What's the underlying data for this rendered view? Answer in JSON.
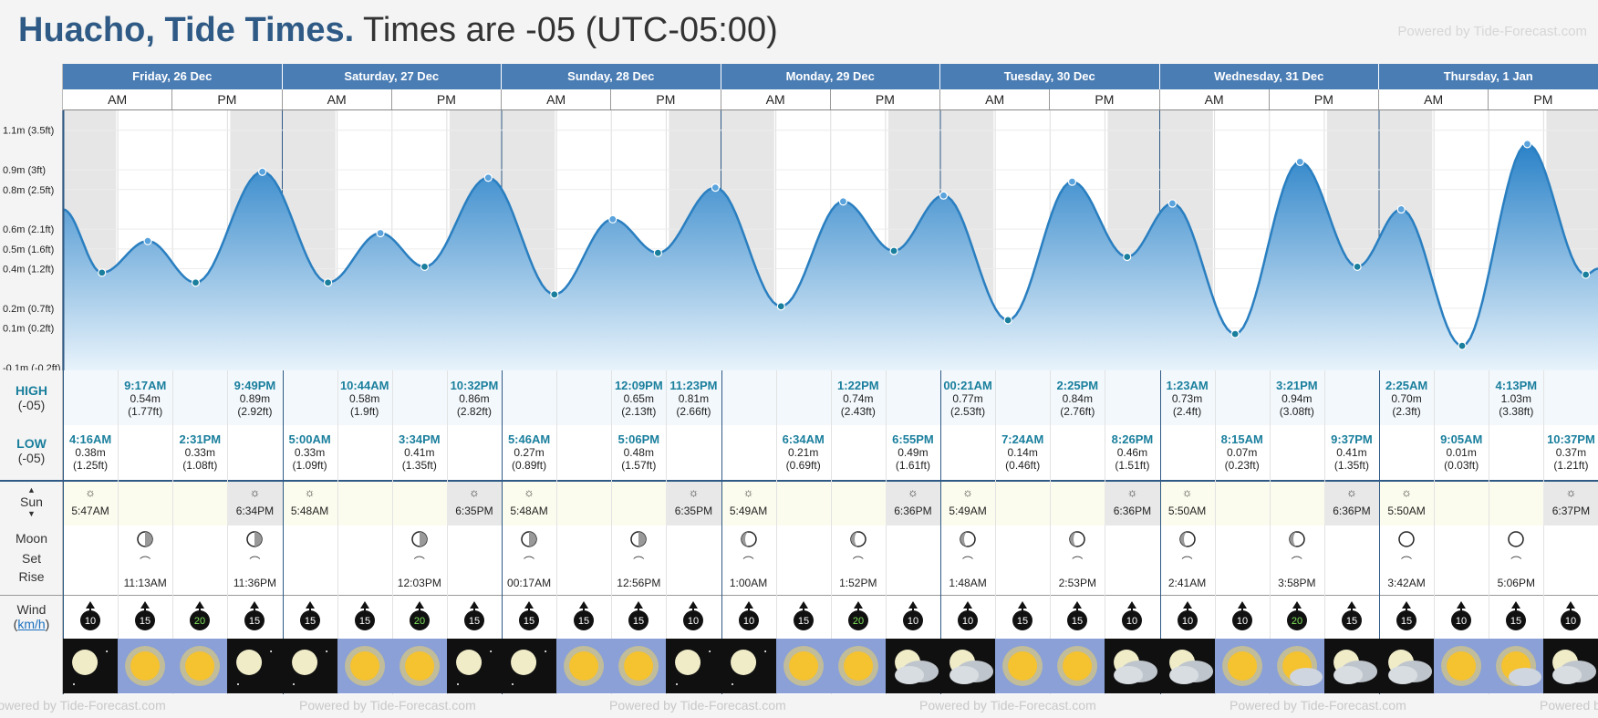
{
  "title": {
    "place": "Huacho, Tide Times.",
    "tz": " Times are -05 (UTC-05:00)"
  },
  "powered": "Powered by Tide-Forecast.com",
  "days": [
    "Friday, 26 Dec",
    "Saturday, 27 Dec",
    "Sunday, 28 Dec",
    "Monday, 29 Dec",
    "Tuesday, 30 Dec",
    "Wednesday, 31 Dec",
    "Thursday, 1 Jan"
  ],
  "am": "AM",
  "pm": "PM",
  "ylabels": [
    "1.1m (3.5ft)",
    "0.9m (3ft)",
    "0.8m (2.5ft)",
    "0.6m (2.1ft)",
    "0.5m (1.6ft)",
    "0.4m (1.2ft)",
    "0.2m (0.7ft)",
    "0.1m (0.2ft)",
    "-0.1m (-0.2ft)"
  ],
  "labels": {
    "high": "HIGH",
    "high_tz": "(-05)",
    "low": "LOW",
    "low_tz": "(-05)",
    "sun": "Sun",
    "moon": "Moon",
    "set": "Set",
    "rise": "Rise",
    "wind": "Wind",
    "unit": "km/h"
  },
  "highs": [
    {
      "slot": 1,
      "time": "9:17AM",
      "m": "0.54m",
      "ft": "(1.77ft)"
    },
    {
      "slot": 3,
      "time": "9:49PM",
      "m": "0.89m",
      "ft": "(2.92ft)"
    },
    {
      "slot": 5,
      "time": "10:44AM",
      "m": "0.58m",
      "ft": "(1.9ft)"
    },
    {
      "slot": 7,
      "time": "10:32PM",
      "m": "0.86m",
      "ft": "(2.82ft)"
    },
    {
      "slot": 10,
      "time": "12:09PM",
      "m": "0.65m",
      "ft": "(2.13ft)"
    },
    {
      "slot": 11,
      "time": "11:23PM",
      "m": "0.81m",
      "ft": "(2.66ft)"
    },
    {
      "slot": 14,
      "time": "1:22PM",
      "m": "0.74m",
      "ft": "(2.43ft)"
    },
    {
      "slot": 16,
      "time": "00:21AM",
      "m": "0.77m",
      "ft": "(2.53ft)"
    },
    {
      "slot": 18,
      "time": "2:25PM",
      "m": "0.84m",
      "ft": "(2.76ft)"
    },
    {
      "slot": 20,
      "time": "1:23AM",
      "m": "0.73m",
      "ft": "(2.4ft)"
    },
    {
      "slot": 22,
      "time": "3:21PM",
      "m": "0.94m",
      "ft": "(3.08ft)"
    },
    {
      "slot": 24,
      "time": "2:25AM",
      "m": "0.70m",
      "ft": "(2.3ft)"
    },
    {
      "slot": 26,
      "time": "4:13PM",
      "m": "1.03m",
      "ft": "(3.38ft)"
    }
  ],
  "lows": [
    {
      "slot": 0,
      "time": "4:16AM",
      "m": "0.38m",
      "ft": "(1.25ft)"
    },
    {
      "slot": 2,
      "time": "2:31PM",
      "m": "0.33m",
      "ft": "(1.08ft)"
    },
    {
      "slot": 4,
      "time": "5:00AM",
      "m": "0.33m",
      "ft": "(1.09ft)"
    },
    {
      "slot": 6,
      "time": "3:34PM",
      "m": "0.41m",
      "ft": "(1.35ft)"
    },
    {
      "slot": 8,
      "time": "5:46AM",
      "m": "0.27m",
      "ft": "(0.89ft)"
    },
    {
      "slot": 10,
      "time": "5:06PM",
      "m": "0.48m",
      "ft": "(1.57ft)"
    },
    {
      "slot": 13,
      "time": "6:34AM",
      "m": "0.21m",
      "ft": "(0.69ft)"
    },
    {
      "slot": 15,
      "time": "6:55PM",
      "m": "0.49m",
      "ft": "(1.61ft)"
    },
    {
      "slot": 17,
      "time": "7:24AM",
      "m": "0.14m",
      "ft": "(0.46ft)"
    },
    {
      "slot": 19,
      "time": "8:26PM",
      "m": "0.46m",
      "ft": "(1.51ft)"
    },
    {
      "slot": 21,
      "time": "8:15AM",
      "m": "0.07m",
      "ft": "(0.23ft)"
    },
    {
      "slot": 23,
      "time": "9:37PM",
      "m": "0.41m",
      "ft": "(1.35ft)"
    },
    {
      "slot": 25,
      "time": "9:05AM",
      "m": "0.01m",
      "ft": "(0.03ft)"
    },
    {
      "slot": 27,
      "time": "10:37PM",
      "m": "0.37m",
      "ft": "(1.21ft)"
    }
  ],
  "sunrise": [
    {
      "slot": 0,
      "time": "5:47AM"
    },
    {
      "slot": 4,
      "time": "5:48AM"
    },
    {
      "slot": 8,
      "time": "5:48AM"
    },
    {
      "slot": 12,
      "time": "5:49AM"
    },
    {
      "slot": 16,
      "time": "5:49AM"
    },
    {
      "slot": 20,
      "time": "5:50AM"
    },
    {
      "slot": 24,
      "time": "5:50AM"
    }
  ],
  "sunset": [
    {
      "slot": 3,
      "time": "6:34PM"
    },
    {
      "slot": 7,
      "time": "6:35PM"
    },
    {
      "slot": 11,
      "time": "6:35PM"
    },
    {
      "slot": 15,
      "time": "6:36PM"
    },
    {
      "slot": 19,
      "time": "6:36PM"
    },
    {
      "slot": 23,
      "time": "6:36PM"
    },
    {
      "slot": 27,
      "time": "6:37PM"
    }
  ],
  "moon": [
    {
      "slot": 1,
      "phase": "half",
      "time": "11:13AM"
    },
    {
      "slot": 3,
      "phase": "half",
      "time": "11:36PM"
    },
    {
      "slot": 6,
      "phase": "half",
      "time": "12:03PM"
    },
    {
      "slot": 8,
      "phase": "half",
      "time": "00:17AM"
    },
    {
      "slot": 10,
      "phase": "half",
      "time": "12:56PM"
    },
    {
      "slot": 12,
      "phase": "gibbous",
      "time": "1:00AM"
    },
    {
      "slot": 14,
      "phase": "gibbous",
      "time": "1:52PM"
    },
    {
      "slot": 16,
      "phase": "gibbous",
      "time": "1:48AM"
    },
    {
      "slot": 18,
      "phase": "gibbous",
      "time": "2:53PM"
    },
    {
      "slot": 20,
      "phase": "gibbous",
      "time": "2:41AM"
    },
    {
      "slot": 22,
      "phase": "gibbous",
      "time": "3:58PM"
    },
    {
      "slot": 24,
      "phase": "full",
      "time": "3:42AM"
    },
    {
      "slot": 26,
      "phase": "full",
      "time": "5:06PM"
    }
  ],
  "wind": [
    "10",
    "15",
    "20",
    "15",
    "15",
    "15",
    "20",
    "15",
    "15",
    "15",
    "15",
    "10",
    "10",
    "15",
    "20",
    "10",
    "10",
    "15",
    "15",
    "10",
    "10",
    "10",
    "20",
    "15",
    "15",
    "10",
    "15",
    "10"
  ],
  "weather": [
    "night-moon",
    "sunny",
    "sunny",
    "night-moon",
    "night-moon",
    "sunny",
    "sunny",
    "night-moon",
    "night-moon",
    "sunny",
    "sunny",
    "night-moon",
    "night-moon",
    "sunny",
    "sunny",
    "night-cloud",
    "night-cloud",
    "sunny",
    "sunny",
    "night-cloud",
    "night-cloud",
    "sunny",
    "sun-cloud",
    "night-cloud",
    "night-cloud",
    "sunny",
    "sun-cloud",
    "night-cloud"
  ],
  "chart_data": {
    "type": "area",
    "series": [
      {
        "name": "",
        "values_m": [
          0.38,
          0.54,
          0.33,
          0.89,
          0.33,
          0.58,
          0.41,
          0.86,
          0.27,
          0.65,
          0.48,
          0.81,
          0.21,
          0.74,
          0.49,
          0.77,
          0.14,
          0.84,
          0.46,
          0.73,
          0.07,
          0.94,
          0.41,
          0.7,
          0.01,
          1.03,
          0.37
        ]
      }
    ],
    "ylim": [
      -0.1,
      1.2
    ]
  }
}
